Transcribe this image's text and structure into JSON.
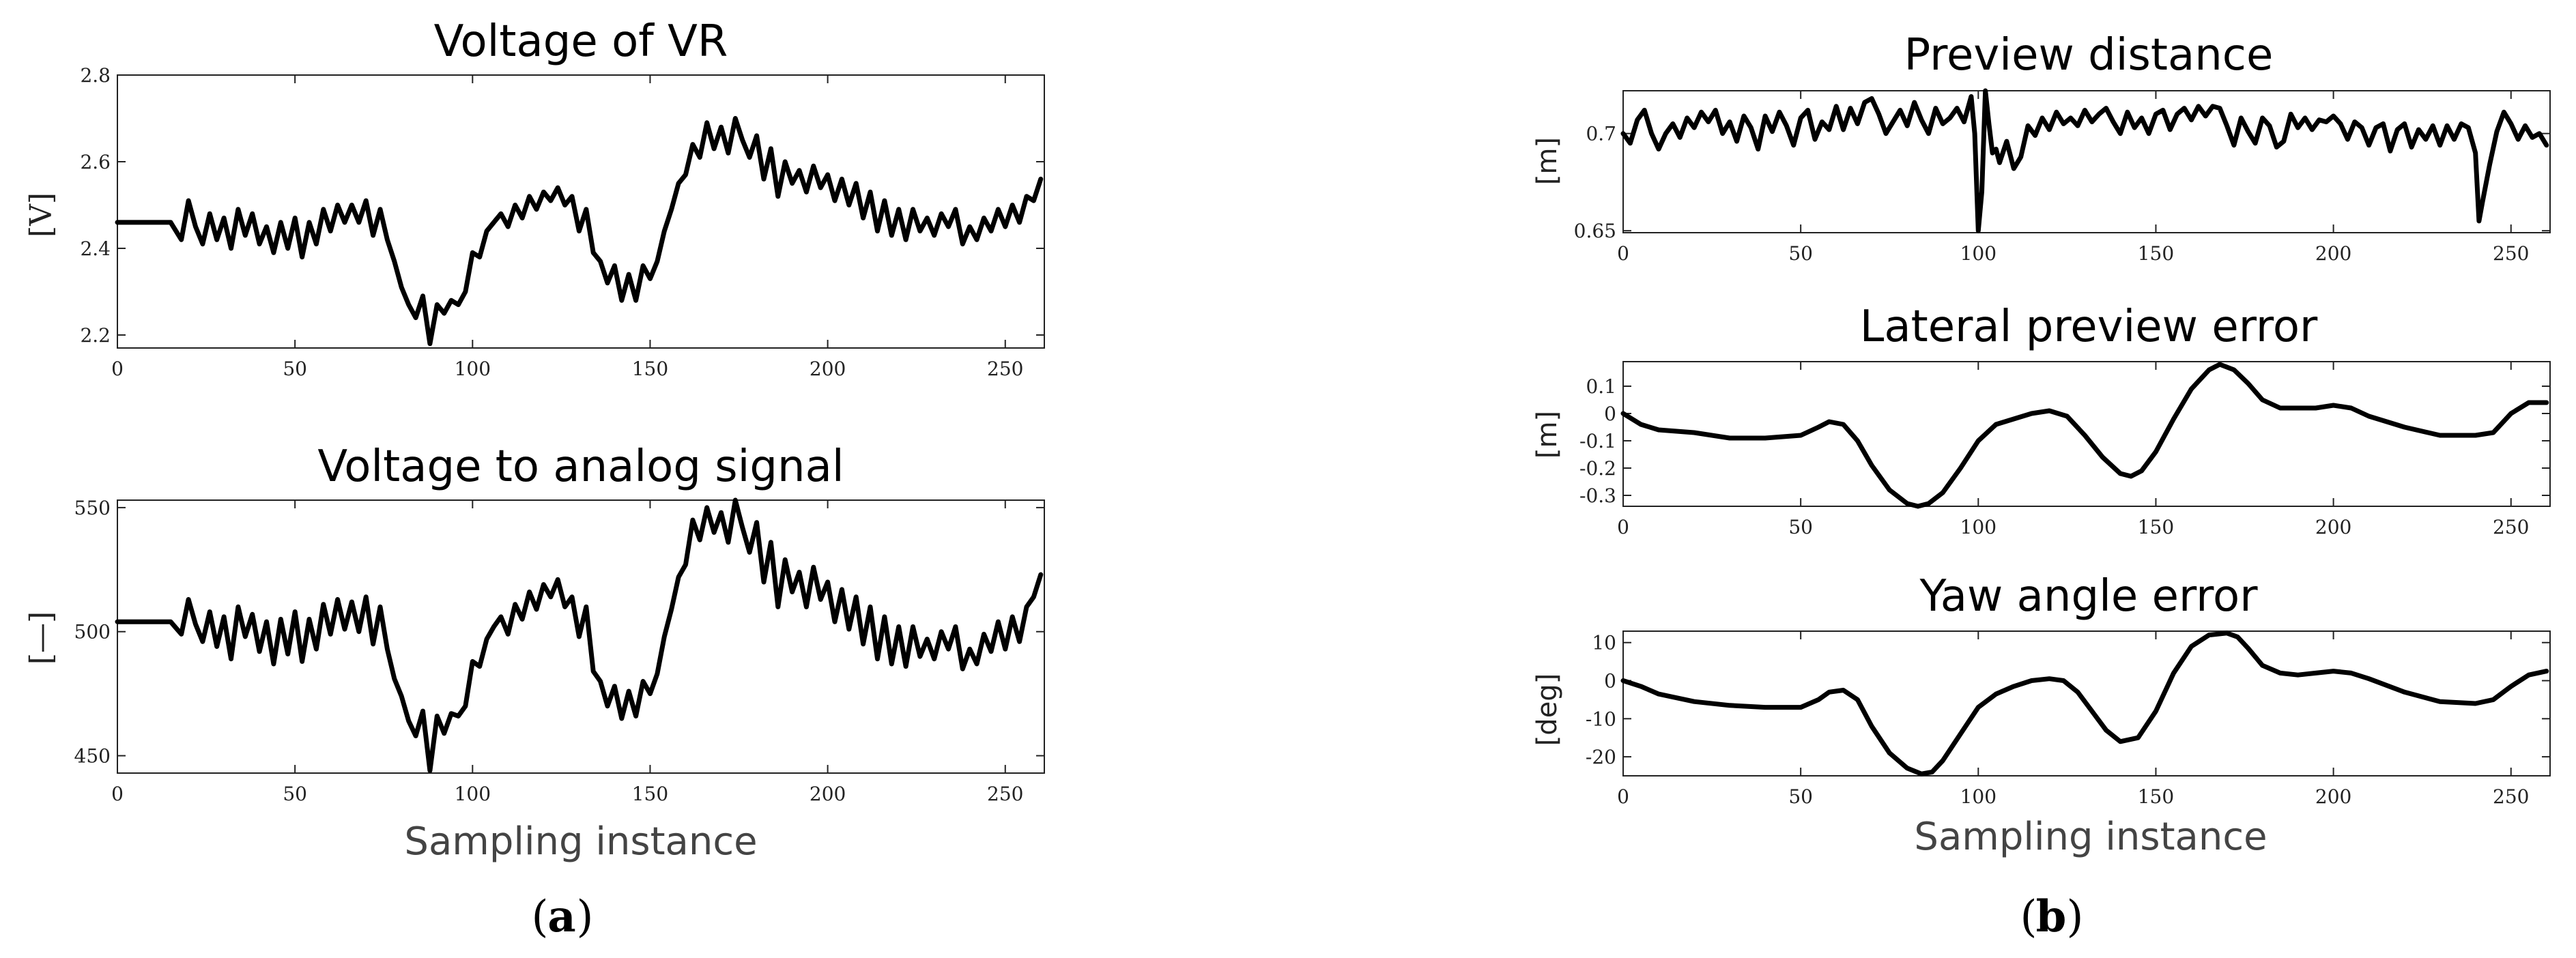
{
  "panels": {
    "a": "a",
    "b": "b"
  },
  "chart_data": [
    {
      "type": "line",
      "title": "Voltage of VR",
      "xlabel": "",
      "ylabel": "[V]",
      "xlim": [
        0,
        261
      ],
      "ylim": [
        2.17,
        2.8
      ],
      "xticks": [
        0,
        50,
        100,
        150,
        200,
        250
      ],
      "yticks": [
        2.2,
        2.4,
        2.6,
        2.8
      ],
      "ytick_labels": [
        "2.2",
        "2.4",
        "2.6",
        "2.8"
      ],
      "series": [
        {
          "x": [
            0,
            5,
            10,
            15,
            18,
            20,
            22,
            24,
            26,
            28,
            30,
            32,
            34,
            36,
            38,
            40,
            42,
            44,
            46,
            48,
            50,
            52,
            54,
            56,
            58,
            60,
            62,
            64,
            66,
            68,
            70,
            72,
            74,
            76,
            78,
            80,
            82,
            84,
            86,
            88,
            90,
            92,
            94,
            96,
            98,
            100,
            102,
            104,
            106,
            108,
            110,
            112,
            114,
            116,
            118,
            120,
            122,
            124,
            126,
            128,
            130,
            132,
            134,
            136,
            138,
            140,
            142,
            144,
            146,
            148,
            150,
            152,
            154,
            156,
            158,
            160,
            162,
            164,
            166,
            168,
            170,
            172,
            174,
            176,
            178,
            180,
            182,
            184,
            186,
            188,
            190,
            192,
            194,
            196,
            198,
            200,
            202,
            204,
            206,
            208,
            210,
            212,
            214,
            216,
            218,
            220,
            222,
            224,
            226,
            228,
            230,
            232,
            234,
            236,
            238,
            240,
            242,
            244,
            246,
            248,
            250,
            252,
            254,
            256,
            258,
            260
          ],
          "y": [
            2.46,
            2.46,
            2.46,
            2.46,
            2.42,
            2.51,
            2.45,
            2.41,
            2.48,
            2.42,
            2.47,
            2.4,
            2.49,
            2.43,
            2.48,
            2.41,
            2.45,
            2.39,
            2.46,
            2.4,
            2.47,
            2.38,
            2.46,
            2.41,
            2.49,
            2.44,
            2.5,
            2.46,
            2.5,
            2.46,
            2.51,
            2.43,
            2.49,
            2.42,
            2.37,
            2.31,
            2.27,
            2.24,
            2.29,
            2.18,
            2.27,
            2.25,
            2.28,
            2.27,
            2.3,
            2.39,
            2.38,
            2.44,
            2.46,
            2.48,
            2.45,
            2.5,
            2.47,
            2.52,
            2.49,
            2.53,
            2.51,
            2.54,
            2.5,
            2.52,
            2.44,
            2.49,
            2.39,
            2.37,
            2.32,
            2.36,
            2.28,
            2.34,
            2.28,
            2.36,
            2.33,
            2.37,
            2.44,
            2.49,
            2.55,
            2.57,
            2.64,
            2.61,
            2.69,
            2.63,
            2.68,
            2.62,
            2.7,
            2.65,
            2.61,
            2.66,
            2.56,
            2.63,
            2.52,
            2.6,
            2.55,
            2.58,
            2.53,
            2.59,
            2.54,
            2.57,
            2.51,
            2.56,
            2.5,
            2.55,
            2.47,
            2.53,
            2.44,
            2.51,
            2.43,
            2.49,
            2.42,
            2.49,
            2.44,
            2.47,
            2.43,
            2.48,
            2.45,
            2.49,
            2.41,
            2.45,
            2.42,
            2.47,
            2.44,
            2.49,
            2.45,
            2.5,
            2.46,
            2.52,
            2.51,
            2.56
          ]
        }
      ]
    },
    {
      "type": "line",
      "title": "Voltage to analog signal",
      "xlabel": "Sampling instance",
      "ylabel": "[—]",
      "xlim": [
        0,
        261
      ],
      "ylim": [
        443,
        553
      ],
      "xticks": [
        0,
        50,
        100,
        150,
        200,
        250
      ],
      "yticks": [
        450,
        500,
        550
      ],
      "ytick_labels": [
        "450",
        "500",
        "550"
      ],
      "series": [
        {
          "x": [
            0,
            5,
            10,
            15,
            18,
            20,
            22,
            24,
            26,
            28,
            30,
            32,
            34,
            36,
            38,
            40,
            42,
            44,
            46,
            48,
            50,
            52,
            54,
            56,
            58,
            60,
            62,
            64,
            66,
            68,
            70,
            72,
            74,
            76,
            78,
            80,
            82,
            84,
            86,
            88,
            90,
            92,
            94,
            96,
            98,
            100,
            102,
            104,
            106,
            108,
            110,
            112,
            114,
            116,
            118,
            120,
            122,
            124,
            126,
            128,
            130,
            132,
            134,
            136,
            138,
            140,
            142,
            144,
            146,
            148,
            150,
            152,
            154,
            156,
            158,
            160,
            162,
            164,
            166,
            168,
            170,
            172,
            174,
            176,
            178,
            180,
            182,
            184,
            186,
            188,
            190,
            192,
            194,
            196,
            198,
            200,
            202,
            204,
            206,
            208,
            210,
            212,
            214,
            216,
            218,
            220,
            222,
            224,
            226,
            228,
            230,
            232,
            234,
            236,
            238,
            240,
            242,
            244,
            246,
            248,
            250,
            252,
            254,
            256,
            258,
            260
          ],
          "y": [
            504,
            504,
            504,
            504,
            499,
            513,
            503,
            496,
            508,
            494,
            506,
            489,
            510,
            498,
            507,
            492,
            504,
            487,
            505,
            491,
            508,
            488,
            505,
            493,
            511,
            499,
            513,
            501,
            512,
            500,
            514,
            495,
            510,
            493,
            481,
            474,
            464,
            458,
            468,
            444,
            466,
            459,
            467,
            466,
            470,
            488,
            486,
            497,
            502,
            506,
            499,
            511,
            505,
            516,
            509,
            519,
            514,
            521,
            510,
            514,
            498,
            510,
            484,
            480,
            470,
            478,
            465,
            476,
            466,
            480,
            475,
            483,
            498,
            509,
            522,
            527,
            545,
            537,
            550,
            540,
            548,
            536,
            553,
            542,
            532,
            544,
            520,
            536,
            510,
            529,
            516,
            524,
            510,
            526,
            513,
            520,
            504,
            517,
            501,
            514,
            495,
            510,
            489,
            506,
            487,
            502,
            486,
            502,
            490,
            497,
            489,
            500,
            493,
            502,
            485,
            493,
            487,
            499,
            492,
            504,
            493,
            506,
            496,
            510,
            514,
            523
          ]
        }
      ]
    },
    {
      "type": "line",
      "title": "Preview distance",
      "xlabel": "",
      "ylabel": "[m]",
      "xlim": [
        0,
        261
      ],
      "ylim": [
        0.649,
        0.722
      ],
      "xticks": [
        0,
        50,
        100,
        150,
        200,
        250
      ],
      "yticks": [
        0.65,
        0.7
      ],
      "ytick_labels": [
        "0.65",
        "0.7"
      ],
      "series": [
        {
          "x": [
            0,
            2,
            4,
            6,
            8,
            10,
            12,
            14,
            16,
            18,
            20,
            22,
            24,
            26,
            28,
            30,
            32,
            34,
            36,
            38,
            40,
            42,
            44,
            46,
            48,
            50,
            52,
            54,
            56,
            58,
            60,
            62,
            64,
            66,
            68,
            70,
            72,
            74,
            76,
            78,
            80,
            82,
            84,
            86,
            88,
            90,
            92,
            94,
            96,
            98,
            99,
            100,
            101,
            102,
            103,
            104,
            105,
            106,
            108,
            110,
            112,
            114,
            116,
            118,
            120,
            122,
            124,
            126,
            128,
            130,
            132,
            134,
            136,
            138,
            140,
            142,
            144,
            146,
            148,
            150,
            152,
            154,
            156,
            158,
            160,
            162,
            164,
            166,
            168,
            170,
            172,
            174,
            176,
            178,
            180,
            182,
            184,
            186,
            188,
            190,
            192,
            194,
            196,
            198,
            200,
            202,
            204,
            206,
            208,
            210,
            212,
            214,
            216,
            218,
            220,
            222,
            224,
            226,
            228,
            230,
            232,
            234,
            236,
            238,
            240,
            241,
            242,
            244,
            246,
            248,
            250,
            252,
            254,
            256,
            258,
            260
          ],
          "y": [
            0.7,
            0.695,
            0.707,
            0.712,
            0.7,
            0.692,
            0.7,
            0.705,
            0.698,
            0.708,
            0.703,
            0.711,
            0.706,
            0.712,
            0.7,
            0.706,
            0.696,
            0.709,
            0.703,
            0.692,
            0.709,
            0.701,
            0.711,
            0.704,
            0.694,
            0.708,
            0.712,
            0.697,
            0.706,
            0.702,
            0.714,
            0.702,
            0.713,
            0.705,
            0.716,
            0.718,
            0.71,
            0.7,
            0.706,
            0.712,
            0.704,
            0.716,
            0.707,
            0.7,
            0.713,
            0.705,
            0.708,
            0.713,
            0.706,
            0.719,
            0.7,
            0.65,
            0.67,
            0.722,
            0.705,
            0.69,
            0.692,
            0.685,
            0.696,
            0.682,
            0.688,
            0.704,
            0.699,
            0.708,
            0.702,
            0.711,
            0.705,
            0.708,
            0.704,
            0.712,
            0.706,
            0.71,
            0.713,
            0.706,
            0.7,
            0.711,
            0.703,
            0.708,
            0.7,
            0.71,
            0.712,
            0.702,
            0.71,
            0.713,
            0.707,
            0.714,
            0.709,
            0.714,
            0.713,
            0.704,
            0.694,
            0.708,
            0.701,
            0.695,
            0.708,
            0.704,
            0.693,
            0.696,
            0.71,
            0.703,
            0.708,
            0.702,
            0.707,
            0.706,
            0.709,
            0.705,
            0.697,
            0.706,
            0.703,
            0.694,
            0.703,
            0.705,
            0.691,
            0.702,
            0.705,
            0.693,
            0.702,
            0.697,
            0.704,
            0.694,
            0.704,
            0.697,
            0.705,
            0.703,
            0.69,
            0.655,
            0.665,
            0.684,
            0.701,
            0.711,
            0.705,
            0.697,
            0.704,
            0.698,
            0.7,
            0.694
          ]
        }
      ]
    },
    {
      "type": "line",
      "title": "Lateral preview error",
      "xlabel": "",
      "ylabel": "[m]",
      "xlim": [
        0,
        261
      ],
      "ylim": [
        -0.34,
        0.19
      ],
      "xticks": [
        0,
        50,
        100,
        150,
        200,
        250
      ],
      "yticks": [
        -0.3,
        -0.2,
        -0.1,
        0,
        0.1
      ],
      "ytick_labels": [
        "-0.3",
        "-0.2",
        "-0.1",
        "0",
        "0.1"
      ],
      "series": [
        {
          "x": [
            0,
            5,
            10,
            20,
            30,
            40,
            50,
            55,
            58,
            62,
            66,
            70,
            75,
            80,
            83,
            86,
            90,
            95,
            100,
            105,
            110,
            115,
            120,
            125,
            130,
            135,
            140,
            143,
            146,
            150,
            155,
            160,
            165,
            168,
            172,
            176,
            180,
            185,
            190,
            195,
            200,
            205,
            210,
            220,
            230,
            240,
            245,
            250,
            255,
            260
          ],
          "y": [
            0.0,
            -0.04,
            -0.06,
            -0.07,
            -0.09,
            -0.09,
            -0.08,
            -0.05,
            -0.03,
            -0.04,
            -0.1,
            -0.19,
            -0.28,
            -0.33,
            -0.34,
            -0.33,
            -0.29,
            -0.2,
            -0.1,
            -0.04,
            -0.02,
            0.0,
            0.01,
            -0.01,
            -0.08,
            -0.16,
            -0.22,
            -0.23,
            -0.21,
            -0.14,
            -0.02,
            0.09,
            0.16,
            0.18,
            0.16,
            0.11,
            0.05,
            0.02,
            0.02,
            0.02,
            0.03,
            0.02,
            -0.01,
            -0.05,
            -0.08,
            -0.08,
            -0.07,
            0.0,
            0.04,
            0.04
          ]
        }
      ]
    },
    {
      "type": "line",
      "title": "Yaw angle error",
      "xlabel": "Sampling instance",
      "ylabel": "[deg]",
      "xlim": [
        0,
        261
      ],
      "ylim": [
        -25,
        13
      ],
      "xticks": [
        0,
        50,
        100,
        150,
        200,
        250
      ],
      "yticks": [
        -20,
        -10,
        0,
        10
      ],
      "ytick_labels": [
        "-20",
        "-10",
        "0",
        "10"
      ],
      "series": [
        {
          "x": [
            0,
            5,
            10,
            20,
            30,
            40,
            50,
            55,
            58,
            62,
            66,
            70,
            75,
            80,
            84,
            87,
            90,
            95,
            100,
            105,
            110,
            115,
            120,
            124,
            128,
            132,
            136,
            140,
            145,
            150,
            155,
            160,
            165,
            170,
            173,
            176,
            180,
            185,
            190,
            195,
            200,
            205,
            210,
            220,
            230,
            240,
            245,
            250,
            255,
            260
          ],
          "y": [
            0.0,
            -1.5,
            -3.5,
            -5.5,
            -6.5,
            -7.0,
            -7.0,
            -5.0,
            -3.0,
            -2.5,
            -5.0,
            -12.0,
            -19.0,
            -23.0,
            -24.5,
            -24.0,
            -21.0,
            -14.0,
            -7.0,
            -3.5,
            -1.5,
            0.0,
            0.5,
            0.0,
            -3.0,
            -8.0,
            -13.0,
            -16.0,
            -15.0,
            -8.0,
            2.0,
            9.0,
            12.0,
            12.5,
            11.5,
            8.5,
            4.0,
            2.0,
            1.5,
            2.0,
            2.5,
            2.0,
            0.5,
            -3.0,
            -5.5,
            -6.0,
            -5.0,
            -1.5,
            1.5,
            2.5
          ]
        }
      ]
    }
  ]
}
